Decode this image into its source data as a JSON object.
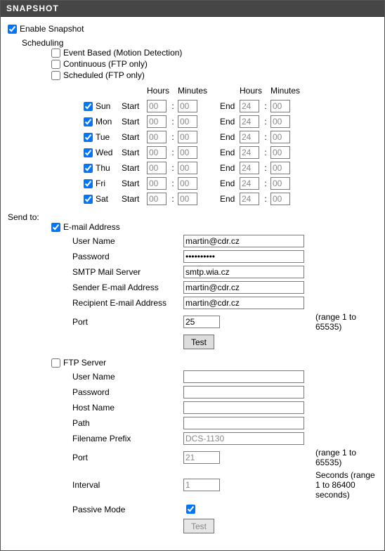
{
  "header": {
    "title": "SNAPSHOT"
  },
  "enable": {
    "label": "Enable Snapshot",
    "checked": true
  },
  "scheduling": {
    "label": "Scheduling",
    "event": {
      "label": "Event Based (Motion Detection)",
      "checked": false
    },
    "continuous": {
      "label": "Continuous (FTP only)",
      "checked": false
    },
    "scheduled": {
      "label": "Scheduled (FTP only)",
      "checked": false
    },
    "columns": {
      "h1": "Hours",
      "m1": "Minutes",
      "h2": "Hours",
      "m2": "Minutes"
    },
    "startLabel": "Start",
    "endLabel": "End",
    "sep": ":",
    "days": [
      {
        "name": "Sun",
        "checked": true,
        "sH": "00",
        "sM": "00",
        "eH": "24",
        "eM": "00"
      },
      {
        "name": "Mon",
        "checked": true,
        "sH": "00",
        "sM": "00",
        "eH": "24",
        "eM": "00"
      },
      {
        "name": "Tue",
        "checked": true,
        "sH": "00",
        "sM": "00",
        "eH": "24",
        "eM": "00"
      },
      {
        "name": "Wed",
        "checked": true,
        "sH": "00",
        "sM": "00",
        "eH": "24",
        "eM": "00"
      },
      {
        "name": "Thu",
        "checked": true,
        "sH": "00",
        "sM": "00",
        "eH": "24",
        "eM": "00"
      },
      {
        "name": "Fri",
        "checked": true,
        "sH": "00",
        "sM": "00",
        "eH": "24",
        "eM": "00"
      },
      {
        "name": "Sat",
        "checked": true,
        "sH": "00",
        "sM": "00",
        "eH": "24",
        "eM": "00"
      }
    ]
  },
  "sendto": {
    "label": "Send to:",
    "email": {
      "label": "E-mail Address",
      "checked": true,
      "fields": {
        "userLabel": "User Name",
        "user": "martin@cdr.cz",
        "passLabel": "Password",
        "pass": "••••••••••",
        "smtpLabel": "SMTP Mail Server",
        "smtp": "smtp.wia.cz",
        "fromLabel": "Sender E-mail Address",
        "from": "martin@cdr.cz",
        "toLabel": "Recipient E-mail Address",
        "to": "martin@cdr.cz",
        "portLabel": "Port",
        "port": "25",
        "portHint": "(range 1 to 65535)",
        "testLabel": "Test"
      }
    },
    "ftp": {
      "label": "FTP Server",
      "checked": false,
      "fields": {
        "userLabel": "User Name",
        "user": "",
        "passLabel": "Password",
        "pass": "",
        "hostLabel": "Host Name",
        "host": "",
        "pathLabel": "Path",
        "path": "",
        "prefixLabel": "Filename Prefix",
        "prefix": "DCS-1130",
        "portLabel": "Port",
        "port": "21",
        "portHint": "(range 1 to 65535)",
        "intervalLabel": "Interval",
        "interval": "1",
        "intervalHint": "Seconds  (range 1 to 86400 seconds)",
        "passiveLabel": "Passive Mode",
        "passive": true,
        "testLabel": "Test"
      }
    }
  }
}
